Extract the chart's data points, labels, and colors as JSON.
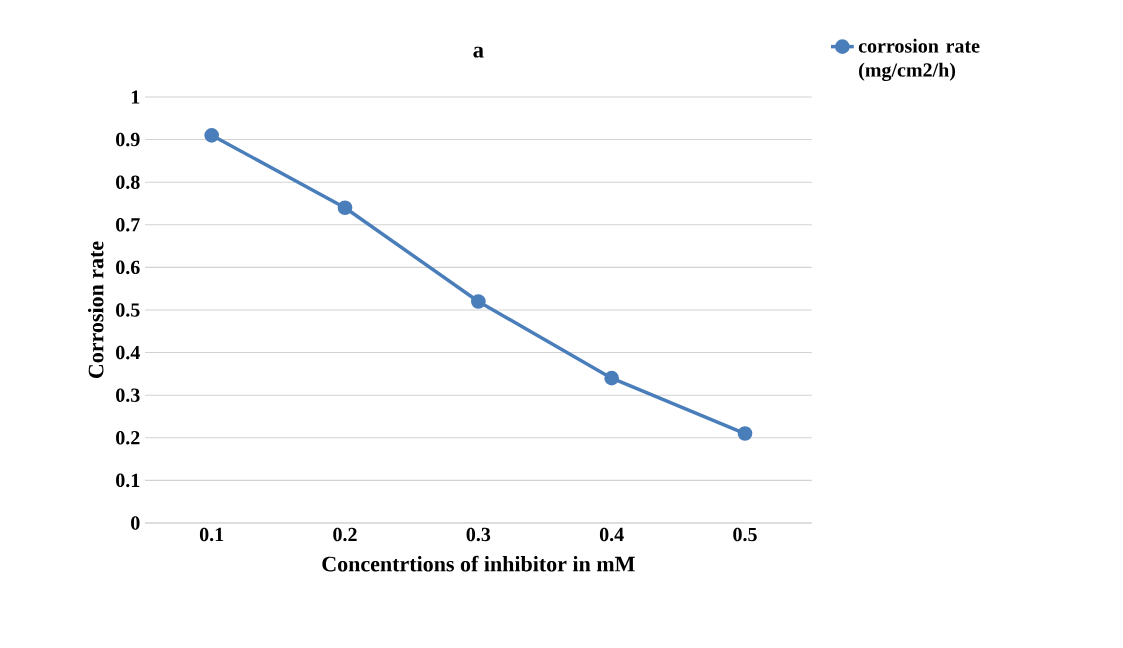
{
  "chart_data": {
    "type": "line",
    "title": "a",
    "xlabel": "Concentrtions of inhibitor in mM",
    "ylabel": "Corrosion rate",
    "categories": [
      "0.1",
      "0.2",
      "0.3",
      "0.4",
      "0.5"
    ],
    "series": [
      {
        "name": "corrosion rate (mg/cm2/h)",
        "color": "#4a7ebb",
        "values": [
          0.91,
          0.74,
          0.52,
          0.34,
          0.21
        ]
      }
    ],
    "ylim": [
      0,
      1
    ],
    "yticks": [
      0,
      0.1,
      0.2,
      0.3,
      0.4,
      0.5,
      0.6,
      0.7,
      0.8,
      0.9,
      1
    ],
    "grid": "y",
    "legend": "top right",
    "marker": "circle",
    "line_style": "solid"
  }
}
